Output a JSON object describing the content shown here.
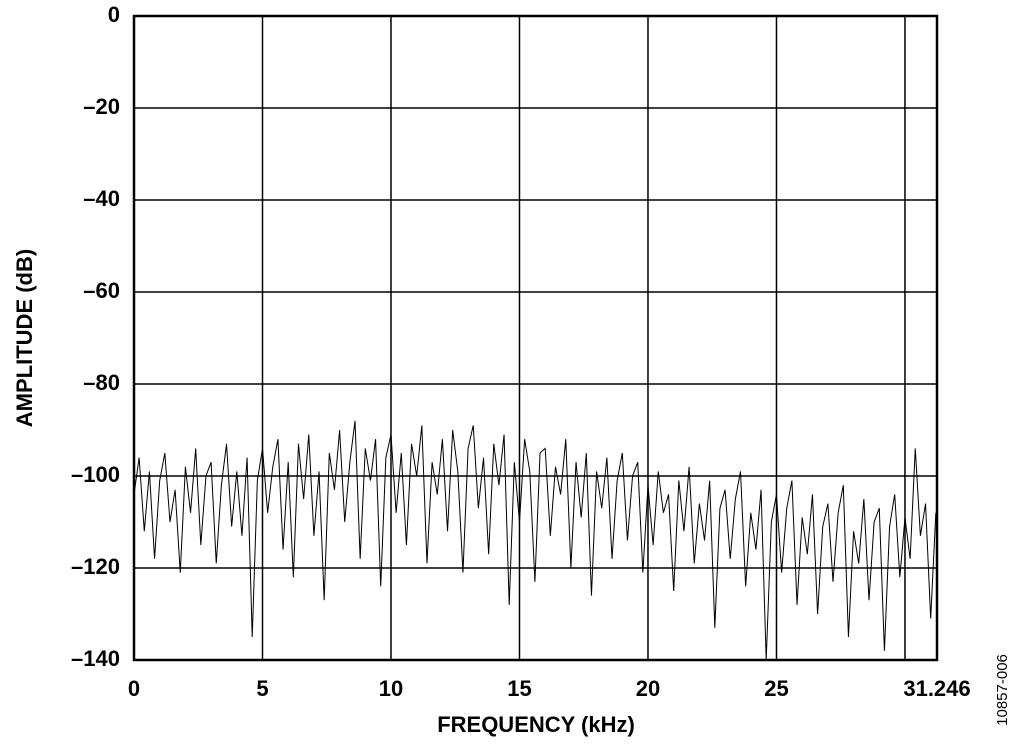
{
  "chart_data": {
    "type": "line",
    "xlabel": "FREQUENCY (kHz)",
    "ylabel": "AMPLITUDE (dB)",
    "figure_id": "10857-006",
    "xlim": [
      0,
      31.246
    ],
    "ylim": [
      -140,
      0
    ],
    "xticks": [
      0,
      5,
      10,
      15,
      20,
      25,
      {
        "value": 30,
        "label": null
      },
      31.246
    ],
    "yticks": [
      0,
      {
        "value": -20,
        "label": "–20"
      },
      {
        "value": -40,
        "label": "–40"
      },
      {
        "value": -60,
        "label": "–60"
      },
      {
        "value": -80,
        "label": "–80"
      },
      {
        "value": -100,
        "label": "–100"
      },
      {
        "value": -120,
        "label": "–120"
      },
      {
        "value": -140,
        "label": "–140"
      }
    ],
    "grid": true,
    "series": [
      {
        "color": "#000000",
        "x": [
          0,
          0.2,
          0.4,
          0.6,
          0.8,
          1,
          1.2,
          1.4,
          1.6,
          1.8,
          2,
          2.2,
          2.4,
          2.6,
          2.8,
          3,
          3.2,
          3.4,
          3.6,
          3.8,
          4,
          4.2,
          4.4,
          4.6,
          4.8,
          5,
          5.2,
          5.4,
          5.6,
          5.8,
          6,
          6.2,
          6.4,
          6.6,
          6.8,
          7,
          7.2,
          7.4,
          7.6,
          7.8,
          8,
          8.2,
          8.4,
          8.6,
          8.8,
          9,
          9.2,
          9.4,
          9.6,
          9.8,
          10,
          10.2,
          10.4,
          10.6,
          10.8,
          11,
          11.2,
          11.4,
          11.6,
          11.8,
          12,
          12.2,
          12.4,
          12.6,
          12.8,
          13,
          13.2,
          13.4,
          13.6,
          13.8,
          14,
          14.2,
          14.4,
          14.6,
          14.8,
          15,
          15.2,
          15.4,
          15.6,
          15.8,
          16,
          16.2,
          16.4,
          16.6,
          16.8,
          17,
          17.2,
          17.4,
          17.6,
          17.8,
          18,
          18.2,
          18.4,
          18.6,
          18.8,
          19,
          19.2,
          19.4,
          19.6,
          19.8,
          20,
          20.2,
          20.4,
          20.6,
          20.8,
          21,
          21.2,
          21.4,
          21.6,
          21.8,
          22,
          22.2,
          22.4,
          22.6,
          22.8,
          23,
          23.2,
          23.4,
          23.6,
          23.8,
          24,
          24.2,
          24.4,
          24.6,
          24.8,
          25,
          25.2,
          25.4,
          25.6,
          25.8,
          26,
          26.2,
          26.4,
          26.6,
          26.8,
          27,
          27.2,
          27.4,
          27.6,
          27.8,
          28,
          28.2,
          28.4,
          28.6,
          28.8,
          29,
          29.2,
          29.4,
          29.6,
          29.8,
          30,
          30.2,
          30.4,
          30.6,
          30.8,
          31,
          31.2
        ],
        "values": [
          -104,
          -96,
          -112,
          -99,
          -118,
          -101,
          -95,
          -110,
          -103,
          -121,
          -98,
          -108,
          -94,
          -115,
          -100,
          -97,
          -119,
          -102,
          -93,
          -111,
          -99,
          -113,
          -96,
          -135,
          -101,
          -94,
          -108,
          -98,
          -92,
          -116,
          -97,
          -122,
          -93,
          -105,
          -91,
          -113,
          -99,
          -127,
          -95,
          -103,
          -90,
          -110,
          -97,
          -88,
          -118,
          -94,
          -101,
          -92,
          -124,
          -96,
          -91,
          -108,
          -95,
          -115,
          -93,
          -100,
          -89,
          -119,
          -97,
          -104,
          -92,
          -112,
          -90,
          -99,
          -121,
          -94,
          -89,
          -107,
          -96,
          -117,
          -93,
          -102,
          -91,
          -128,
          -97,
          -110,
          -92,
          -99,
          -123,
          -95,
          -94,
          -113,
          -98,
          -104,
          -92,
          -120,
          -97,
          -109,
          -95,
          -126,
          -99,
          -107,
          -96,
          -118,
          -101,
          -95,
          -114,
          -100,
          -97,
          -121,
          -102,
          -115,
          -99,
          -108,
          -104,
          -125,
          -101,
          -112,
          -98,
          -119,
          -106,
          -114,
          -101,
          -133,
          -107,
          -103,
          -118,
          -105,
          -99,
          -124,
          -108,
          -116,
          -103,
          -140,
          -110,
          -104,
          -121,
          -107,
          -101,
          -128,
          -109,
          -117,
          -104,
          -130,
          -111,
          -106,
          -123,
          -108,
          -102,
          -135,
          -112,
          -119,
          -105,
          -127,
          -110,
          -107,
          -138,
          -111,
          -104,
          -122,
          -109,
          -118,
          -94,
          -113,
          -106,
          -131,
          -108
        ]
      }
    ]
  }
}
